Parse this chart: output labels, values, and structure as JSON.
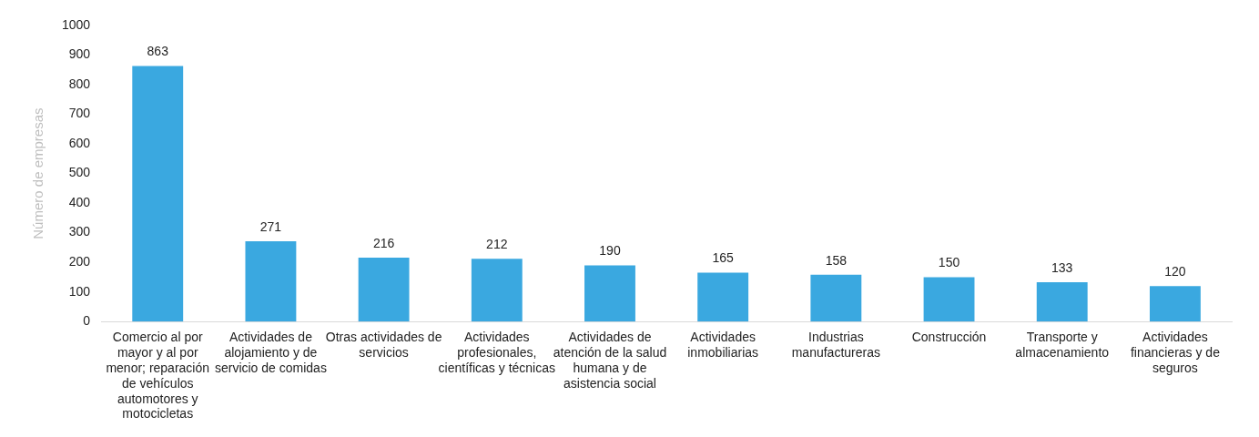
{
  "chart_data": {
    "type": "bar",
    "ylabel": "Número de empresas",
    "categories": [
      "Comercio al por mayor y al por menor; reparación de vehículos automotores y motocicletas",
      "Actividades de alojamiento y de servicio de comidas",
      "Otras actividades de servicios",
      "Actividades profesionales, científicas y técnicas",
      "Actividades de atención de la salud humana y de asistencia social",
      "Actividades inmobiliarias",
      "Industrias manufactureras",
      "Construcción",
      "Transporte y almacenamiento",
      "Actividades financieras y de seguros"
    ],
    "values": [
      863,
      271,
      216,
      212,
      190,
      165,
      158,
      150,
      133,
      120
    ],
    "color": "#3aa8e0",
    "ylim": [
      0,
      1000
    ],
    "yticks": [
      0,
      100,
      200,
      300,
      400,
      500,
      600,
      700,
      800,
      900,
      1000
    ],
    "grid": false,
    "legend": false,
    "data_labels": true
  }
}
